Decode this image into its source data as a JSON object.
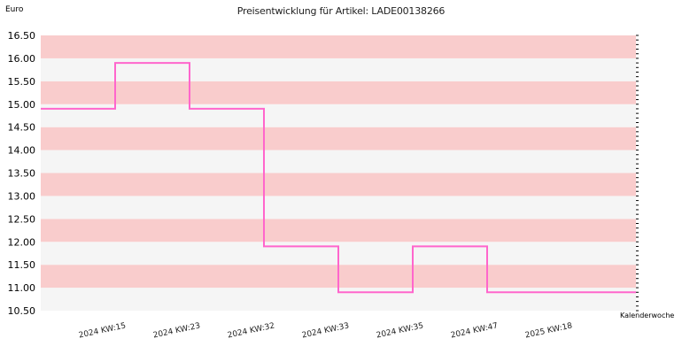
{
  "chart_data": {
    "type": "line",
    "step": true,
    "title": "Preisentwicklung für Artikel: LADE00138266",
    "ylabel": "Euro",
    "xlabel": "Kalenderwoche",
    "ylim": [
      10.5,
      16.5
    ],
    "ytick_step": 0.5,
    "yticks": [
      "10.50",
      "11.00",
      "11.50",
      "12.00",
      "12.50",
      "13.00",
      "13.50",
      "14.00",
      "14.50",
      "15.00",
      "15.50",
      "16.00",
      "16.50"
    ],
    "categories": [
      "2024 KW:15",
      "2024 KW:23",
      "2024 KW:32",
      "2024 KW:33",
      "2024 KW:35",
      "2024 KW:47",
      "2025 KW:18"
    ],
    "series": [
      {
        "values": [
          14.9,
          15.9,
          14.9,
          11.9,
          10.9,
          11.9,
          10.9
        ],
        "color": "#ff66cc"
      }
    ],
    "band_colors": [
      "#f9cccc",
      "#f5f5f5"
    ],
    "grid": true
  }
}
